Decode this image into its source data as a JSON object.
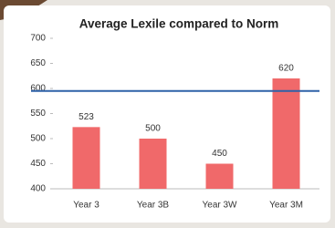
{
  "chart_data": {
    "type": "bar",
    "title": "Average Lexile compared to Norm",
    "categories": [
      "Year 3",
      "Year 3B",
      "Year 3W",
      "Year 3M"
    ],
    "values": [
      523,
      500,
      450,
      620
    ],
    "color": "#f0696a",
    "ylim": [
      400,
      700
    ],
    "yticks": [
      400,
      450,
      500,
      550,
      600,
      650,
      700
    ],
    "reference_line": {
      "value": 595,
      "color": "#2e62a8"
    },
    "grid": false
  }
}
